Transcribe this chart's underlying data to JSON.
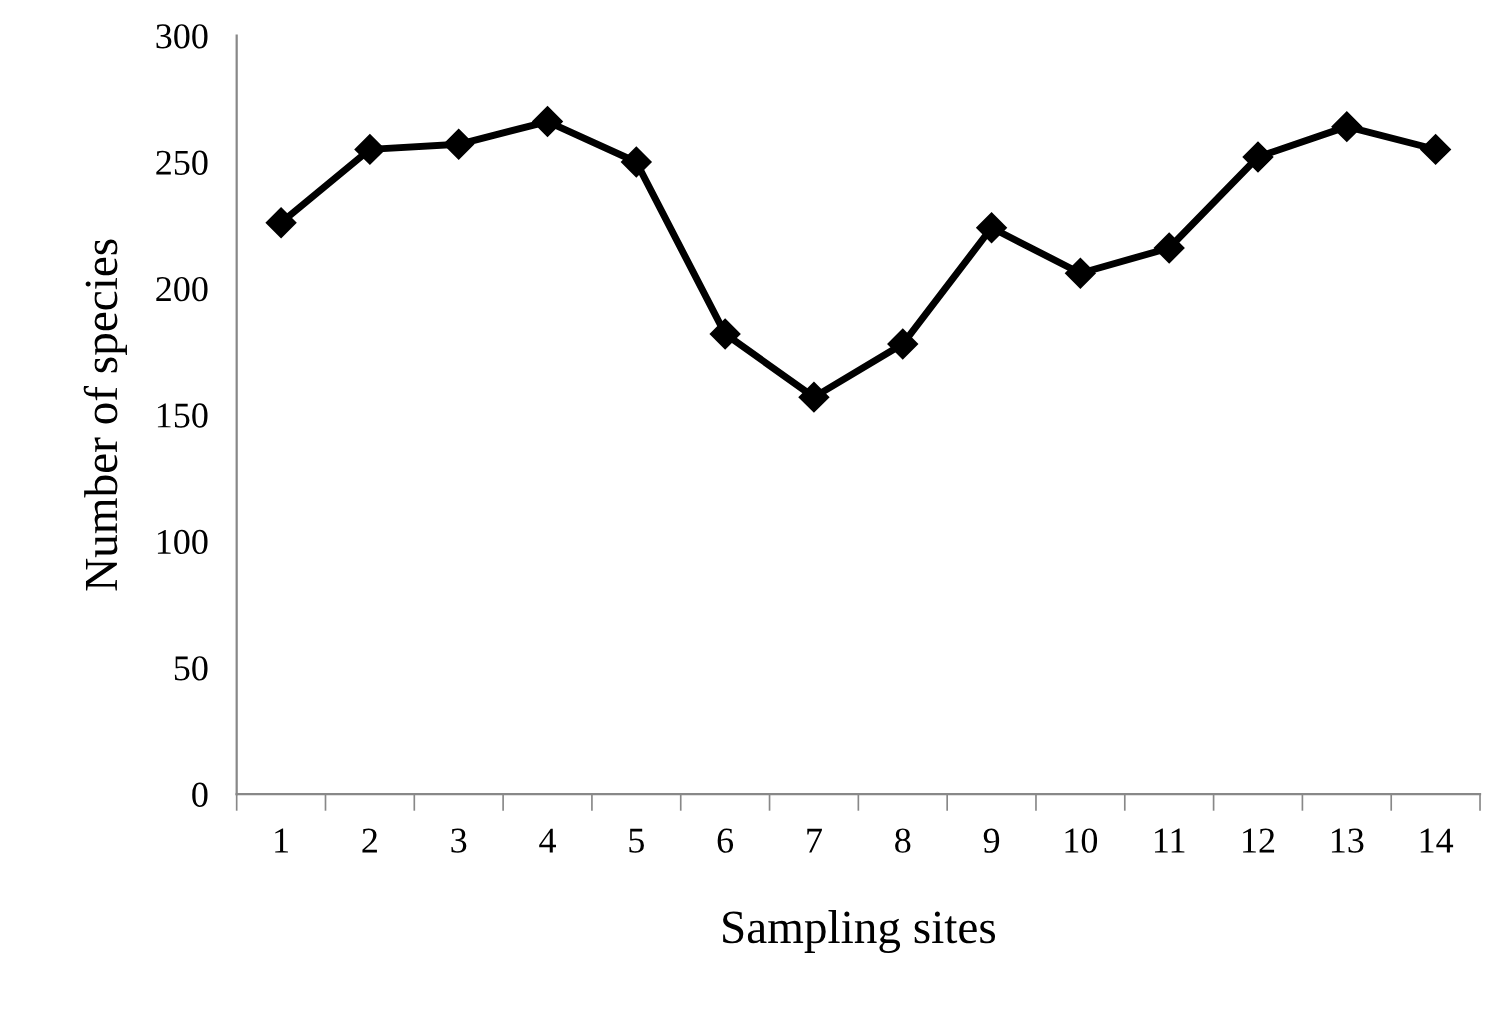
{
  "chart_data": {
    "type": "line",
    "xlabel": "Sampling sites",
    "ylabel": "Number of species",
    "categories": [
      "1",
      "2",
      "3",
      "4",
      "5",
      "6",
      "7",
      "8",
      "9",
      "10",
      "11",
      "12",
      "13",
      "14"
    ],
    "series": [
      {
        "color": "#000000",
        "values": [
          226,
          255,
          257,
          266,
          250,
          182,
          157,
          178,
          224,
          206,
          216,
          252,
          264,
          255
        ]
      }
    ],
    "ylim": [
      0,
      300
    ],
    "yticks": [
      0,
      50,
      100,
      150,
      200,
      250,
      300
    ],
    "grid": false,
    "legend": false,
    "marker": "diamond",
    "line_style": "solid"
  }
}
